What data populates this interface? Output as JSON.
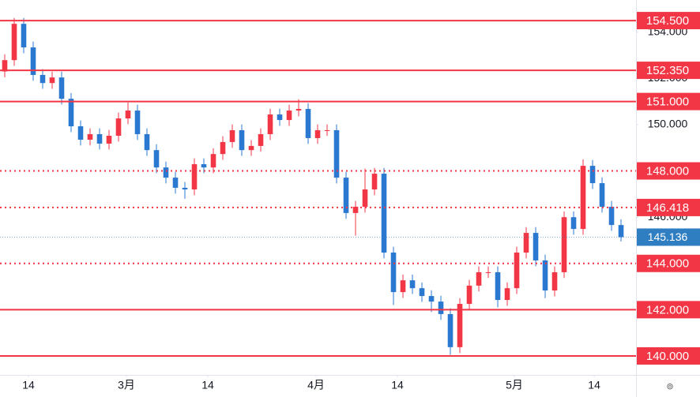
{
  "chart_data": {
    "type": "candlestick",
    "up_color": "#f23645",
    "down_color": "#2a78d0",
    "level_color": "#f23645",
    "current_color": "#2f7ec1",
    "xlim": [
      -0.5,
      66.58
    ],
    "ylim": [
      139.18,
      155.39
    ],
    "xticks": [
      {
        "value": 2.5,
        "label": "14"
      },
      {
        "value": 12.83,
        "label": "3月"
      },
      {
        "value": 21.42,
        "label": "14"
      },
      {
        "value": 32.83,
        "label": "4月"
      },
      {
        "value": 41.42,
        "label": "14"
      },
      {
        "value": 53.75,
        "label": "5月"
      },
      {
        "value": 62.17,
        "label": "14"
      }
    ],
    "yticks": [
      {
        "value": 154,
        "label": "154.000"
      },
      {
        "value": 152,
        "label": "152.000"
      },
      {
        "value": 150,
        "label": "150.000"
      },
      {
        "value": 146,
        "label": "146.000"
      }
    ],
    "levels": [
      {
        "value": 154.5,
        "label": "154.500",
        "style": "solid"
      },
      {
        "value": 152.35,
        "label": "152.350",
        "style": "solid"
      },
      {
        "value": 151,
        "label": "151.000",
        "style": "solid"
      },
      {
        "value": 148,
        "label": "148.000",
        "style": "dotted"
      },
      {
        "value": 146.418,
        "label": "146.418",
        "style": "dotted"
      },
      {
        "value": 144,
        "label": "144.000",
        "style": "dotted"
      },
      {
        "value": 142,
        "label": "142.000",
        "style": "solid"
      },
      {
        "value": 140,
        "label": "140.000",
        "style": "solid"
      }
    ],
    "current_price": {
      "value": 145.136,
      "label": "145.136"
    },
    "open": [
      152.3,
      152.79,
      154.36,
      153.34,
      152.15,
      151.8,
      152.04,
      151.12,
      149.93,
      149.35,
      149.59,
      149.18,
      149.52,
      150.27,
      150.61,
      149.59,
      148.9,
      148.15,
      147.71,
      147.27,
      147.2,
      148.29,
      148.15,
      148.73,
      149.25,
      149.76,
      148.9,
      149.08,
      149.59,
      150.44,
      150.2,
      150.61,
      150.68,
      149.42,
      149.76,
      149.76,
      147.71,
      146.18,
      146.45,
      147.2,
      147.88,
      144.47,
      142.76,
      143.27,
      142.93,
      142.59,
      142.35,
      141.81,
      140.38,
      142.25,
      143.04,
      143.62,
      143.62,
      142.42,
      142.93,
      144.47,
      145.32,
      144.13,
      142.83,
      143.62,
      146.0,
      145.49,
      148.22,
      147.47,
      146.45,
      145.66
    ],
    "high": [
      153.04,
      154.61,
      154.61,
      153.59,
      152.4,
      152.29,
      152.29,
      151.37,
      150.18,
      149.84,
      149.84,
      149.77,
      150.52,
      150.96,
      150.86,
      149.84,
      149.15,
      148.4,
      147.96,
      147.52,
      148.54,
      148.54,
      148.98,
      149.5,
      150.01,
      150.01,
      149.33,
      149.84,
      150.69,
      150.69,
      150.86,
      151.1,
      150.93,
      150.01,
      150.01,
      150.01,
      147.96,
      146.7,
      148.1,
      148.13,
      148.13,
      144.72,
      143.52,
      143.52,
      143.18,
      142.84,
      142.6,
      142.06,
      142.5,
      143.29,
      143.87,
      143.87,
      143.87,
      143.18,
      144.72,
      145.57,
      145.57,
      144.38,
      143.87,
      146.25,
      146.25,
      148.5,
      148.47,
      147.72,
      146.7,
      145.91
    ],
    "low": [
      152.05,
      152.54,
      153.09,
      151.9,
      151.55,
      151.55,
      150.87,
      149.68,
      149.1,
      149.1,
      148.93,
      148.93,
      149.27,
      150.02,
      149.34,
      148.65,
      147.9,
      147.46,
      147.02,
      146.8,
      146.95,
      147.9,
      147.9,
      148.48,
      149.0,
      148.65,
      148.65,
      148.83,
      149.34,
      149.95,
      149.95,
      150.36,
      149.17,
      149.17,
      149.51,
      147.46,
      145.93,
      145.2,
      146.2,
      146.95,
      144.22,
      142.2,
      142.51,
      142.68,
      142.34,
      141.9,
      141.56,
      140.05,
      140.13,
      142.0,
      142.79,
      143.37,
      142.1,
      142.17,
      142.68,
      144.22,
      143.88,
      142.5,
      142.58,
      143.37,
      145.24,
      145.24,
      147.22,
      146.2,
      145.41,
      144.95
    ],
    "close": [
      152.79,
      154.36,
      153.34,
      152.15,
      151.8,
      152.04,
      151.12,
      149.93,
      149.35,
      149.59,
      149.18,
      149.52,
      150.27,
      150.61,
      149.59,
      148.9,
      148.15,
      147.71,
      147.27,
      147.2,
      148.29,
      148.15,
      148.73,
      149.25,
      149.76,
      148.9,
      149.08,
      149.59,
      150.44,
      150.2,
      150.61,
      150.68,
      149.42,
      149.76,
      149.76,
      147.71,
      146.18,
      146.45,
      147.2,
      147.88,
      144.47,
      142.76,
      143.27,
      142.93,
      142.59,
      142.35,
      141.81,
      140.38,
      142.25,
      143.04,
      143.62,
      143.62,
      142.42,
      142.93,
      144.47,
      145.32,
      144.13,
      142.83,
      143.62,
      146.0,
      145.49,
      148.22,
      147.47,
      146.45,
      145.66,
      145.136
    ]
  }
}
